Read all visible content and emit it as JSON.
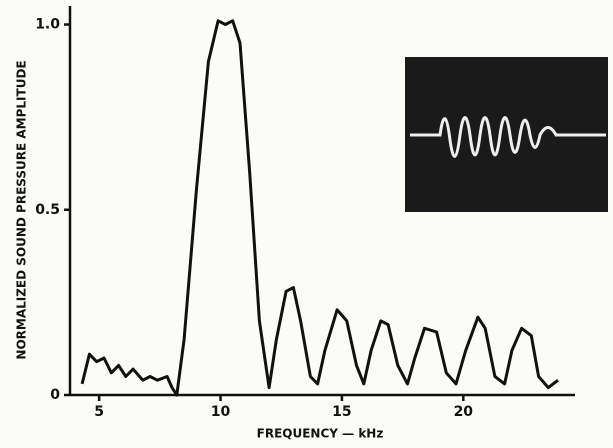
{
  "chart_data": {
    "type": "line",
    "y_label": "NORMALIZED SOUND PRESSURE AMPLITUDE",
    "x_label": "FREQUENCY — kHz",
    "x": [
      4.3,
      4.6,
      4.9,
      5.2,
      5.5,
      5.8,
      6.1,
      6.4,
      6.8,
      7.1,
      7.4,
      7.8,
      8.0,
      8.2,
      8.5,
      9.0,
      9.5,
      9.9,
      10.2,
      10.5,
      10.8,
      11.2,
      11.6,
      12.0,
      12.3,
      12.7,
      13.0,
      13.3,
      13.7,
      14.0,
      14.3,
      14.8,
      15.2,
      15.6,
      15.9,
      16.2,
      16.6,
      16.9,
      17.3,
      17.7,
      18.0,
      18.4,
      18.9,
      19.3,
      19.7,
      20.1,
      20.6,
      20.9,
      21.3,
      21.7,
      22.0,
      22.4,
      22.8,
      23.1,
      23.5,
      23.9
    ],
    "values": [
      0.03,
      0.11,
      0.09,
      0.1,
      0.06,
      0.08,
      0.05,
      0.07,
      0.04,
      0.05,
      0.04,
      0.05,
      0.02,
      0.0,
      0.15,
      0.55,
      0.9,
      1.01,
      1.0,
      1.01,
      0.95,
      0.6,
      0.2,
      0.02,
      0.15,
      0.28,
      0.29,
      0.2,
      0.05,
      0.03,
      0.12,
      0.23,
      0.2,
      0.08,
      0.03,
      0.12,
      0.2,
      0.19,
      0.08,
      0.03,
      0.1,
      0.18,
      0.17,
      0.06,
      0.03,
      0.12,
      0.21,
      0.18,
      0.05,
      0.03,
      0.12,
      0.18,
      0.16,
      0.05,
      0.02,
      0.04
    ],
    "color": "#111111",
    "xlim": [
      3.8,
      24.6
    ],
    "ylim": [
      0,
      1.05
    ],
    "xticks": [
      5,
      10,
      15,
      20
    ],
    "yticks": [
      0,
      0.5,
      {
        "value": 1,
        "label": "1.0"
      }
    ],
    "grid": false
  }
}
